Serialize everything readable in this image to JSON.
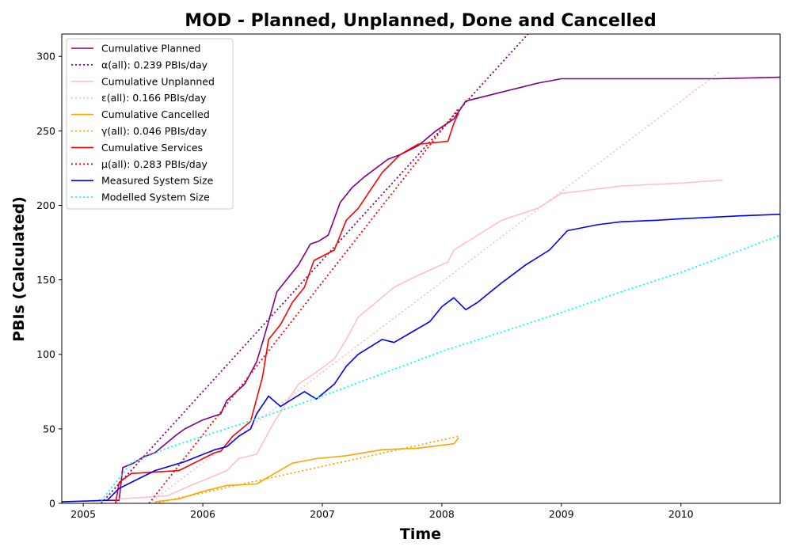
{
  "chart_data": {
    "type": "line",
    "title": "MOD - Planned, Unplanned, Done  and Cancelled",
    "xlabel": "Time",
    "ylabel": "PBIs (Calculated)",
    "xlim": [
      2004.82,
      2010.83
    ],
    "ylim": [
      0,
      315
    ],
    "x_ticks": [
      2005,
      2006,
      2007,
      2008,
      2009,
      2010
    ],
    "x_tick_labels": [
      "2005",
      "2006",
      "2007",
      "2008",
      "2009",
      "2010"
    ],
    "y_ticks": [
      0,
      50,
      100,
      150,
      200,
      250,
      300
    ],
    "y_tick_labels": [
      "0",
      "50",
      "100",
      "150",
      "200",
      "250",
      "300"
    ],
    "grid": false,
    "legend_position": "top-left",
    "series": [
      {
        "name": "Cumulative Planned",
        "color": "#800080",
        "style": "solid",
        "x": [
          2005.13,
          2005.3,
          2005.33,
          2005.42,
          2005.5,
          2005.6,
          2005.78,
          2005.85,
          2006.0,
          2006.15,
          2006.2,
          2006.35,
          2006.45,
          2006.5,
          2006.55,
          2006.62,
          2006.7,
          2006.8,
          2006.9,
          2006.97,
          2007.05,
          2007.15,
          2007.25,
          2007.35,
          2007.45,
          2007.55,
          2007.65,
          2007.8,
          2007.95,
          2008.1,
          2008.2,
          2008.4,
          2008.55,
          2008.65,
          2008.8,
          2009.0,
          2009.3,
          2009.8,
          2010.3,
          2010.83
        ],
        "y": [
          2,
          2,
          24,
          27,
          31,
          34,
          46,
          50,
          56,
          60,
          69,
          80,
          95,
          108,
          122,
          142,
          150,
          160,
          174,
          176,
          180,
          202,
          212,
          219,
          225,
          231,
          234,
          240,
          250,
          258,
          270,
          274,
          277,
          279,
          282,
          285,
          285,
          285,
          285,
          286
        ]
      },
      {
        "name": "α(all): 0.239 PBIs/day",
        "color": "#800080",
        "style": "dotted",
        "x": [
          2005.15,
          2008.72
        ],
        "y": [
          0,
          315
        ]
      },
      {
        "name": "Cumulative Unplanned",
        "color": "#ffc0cb",
        "style": "solid",
        "x": [
          2005.3,
          2005.5,
          2005.7,
          2005.9,
          2006.2,
          2006.3,
          2006.45,
          2006.6,
          2006.8,
          2006.95,
          2007.1,
          2007.2,
          2007.3,
          2007.45,
          2007.6,
          2007.8,
          2008.05,
          2008.1,
          2008.3,
          2008.5,
          2008.8,
          2009.0,
          2009.5,
          2010.0,
          2010.35
        ],
        "y": [
          3,
          4,
          5,
          12,
          22,
          30,
          33,
          55,
          80,
          88,
          97,
          110,
          125,
          135,
          145,
          153,
          162,
          170,
          180,
          190,
          198,
          208,
          213,
          215,
          217
        ]
      },
      {
        "name": "ε(all): 0.166 PBIs/day",
        "color": "#ffc0cb",
        "style": "dotted",
        "x": [
          2005.55,
          2010.33
        ],
        "y": [
          0,
          290
        ]
      },
      {
        "name": "Cumulative Cancelled",
        "color": "#ffa500",
        "style": "solid",
        "x": [
          2005.6,
          2005.8,
          2006.0,
          2006.1,
          2006.2,
          2006.45,
          2006.6,
          2006.75,
          2006.95,
          2007.2,
          2007.5,
          2007.8,
          2008.1,
          2008.14
        ],
        "y": [
          1,
          3,
          8,
          10,
          12,
          13,
          20,
          27,
          30,
          32,
          36,
          37,
          40,
          44
        ]
      },
      {
        "name": "γ(all): 0.046 PBIs/day",
        "color": "#ffa500",
        "style": "dotted",
        "x": [
          2005.6,
          2008.14
        ],
        "y": [
          0,
          45
        ]
      },
      {
        "name": "Cumulative Services",
        "color": "#ff0000",
        "style": "solid",
        "x": [
          2005.27,
          2005.3,
          2005.4,
          2005.8,
          2006.1,
          2006.15,
          2006.25,
          2006.4,
          2006.5,
          2006.55,
          2006.65,
          2006.75,
          2006.85,
          2006.93,
          2007.1,
          2007.2,
          2007.3,
          2007.4,
          2007.5,
          2007.65,
          2007.8,
          2008.05,
          2008.1,
          2008.14
        ],
        "y": [
          0,
          14,
          20,
          22,
          34,
          35,
          45,
          55,
          85,
          110,
          120,
          135,
          145,
          163,
          170,
          190,
          198,
          210,
          222,
          234,
          241,
          243,
          255,
          262
        ]
      },
      {
        "name": "μ(all): 0.283 PBIs/day",
        "color": "#ff0000",
        "style": "dotted",
        "x": [
          2005.55,
          2008.14
        ],
        "y": [
          0,
          265
        ]
      },
      {
        "name": "Measured System Size",
        "color": "#0000ff",
        "style": "solid",
        "x": [
          2004.82,
          2005.2,
          2005.3,
          2005.4,
          2005.6,
          2005.85,
          2006.1,
          2006.2,
          2006.3,
          2006.4,
          2006.45,
          2006.55,
          2006.65,
          2006.75,
          2006.85,
          2006.95,
          2007.1,
          2007.2,
          2007.3,
          2007.4,
          2007.5,
          2007.6,
          2007.75,
          2007.9,
          2008.0,
          2008.1,
          2008.2,
          2008.3,
          2008.5,
          2008.7,
          2008.9,
          2009.05,
          2009.3,
          2009.5,
          2009.8,
          2010.0,
          2010.5,
          2010.83
        ],
        "y": [
          1,
          2,
          10,
          14,
          22,
          28,
          36,
          38,
          45,
          50,
          60,
          72,
          65,
          70,
          75,
          70,
          80,
          92,
          100,
          105,
          110,
          108,
          115,
          122,
          132,
          138,
          130,
          135,
          148,
          160,
          170,
          183,
          187,
          189,
          190,
          191,
          193,
          194
        ]
      },
      {
        "name": "Modelled System Size",
        "color": "#00ffff",
        "style": "dotted",
        "x": [
          2005.15,
          2005.4,
          2005.7,
          2006.0,
          2006.5,
          2007.0,
          2007.5,
          2008.0,
          2008.5,
          2009.0,
          2009.5,
          2010.0,
          2010.5,
          2010.83
        ],
        "y": [
          2,
          27,
          37,
          45,
          58,
          72,
          87,
          102,
          115,
          128,
          142,
          155,
          170,
          180
        ]
      }
    ]
  }
}
